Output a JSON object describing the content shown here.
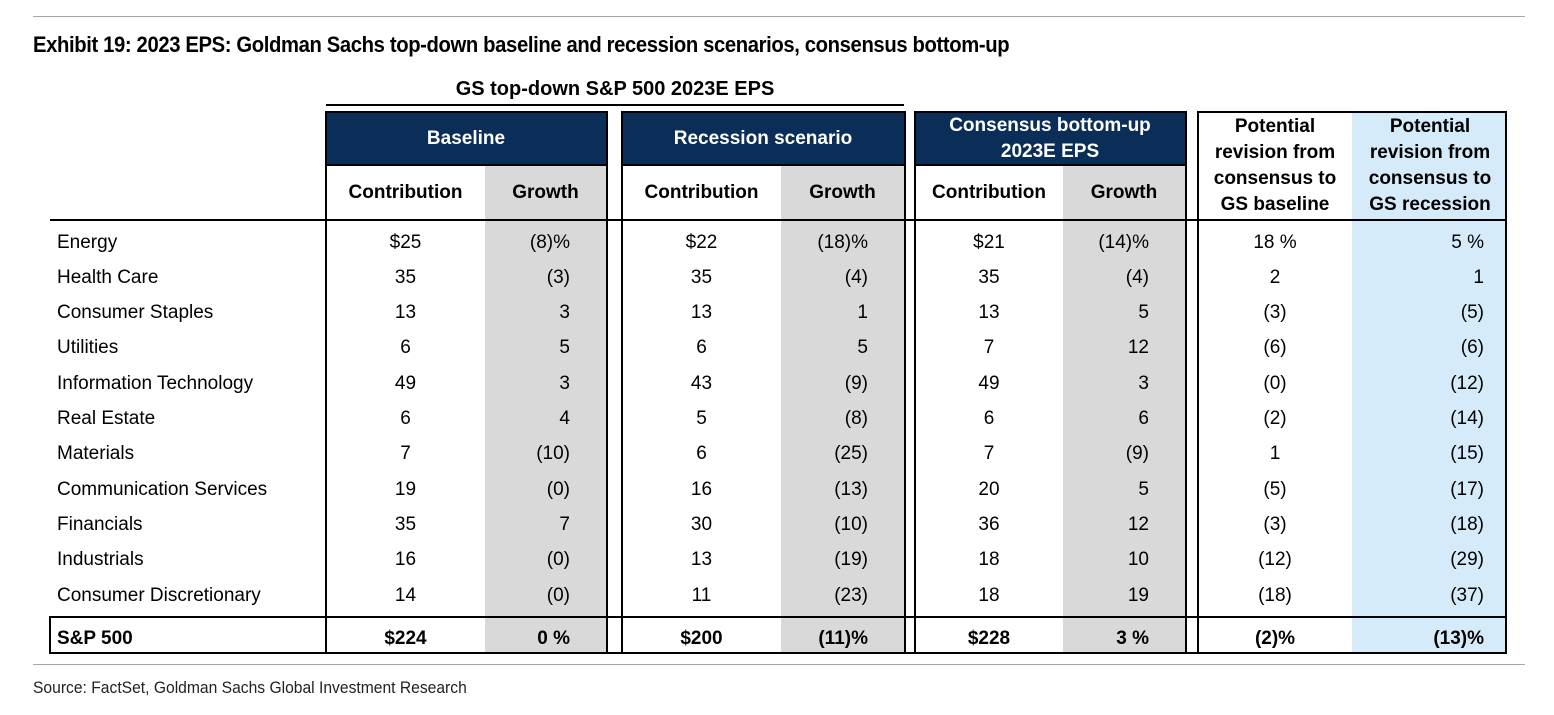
{
  "title": "Exhibit 19: 2023 EPS: Goldman Sachs top-down baseline and recession scenarios, consensus bottom-up",
  "group_header": "GS top-down S&P 500 2023E EPS",
  "column_groups": {
    "baseline": "Baseline",
    "recession": "Recession scenario",
    "consensus": "Consensus bottom-up 2023E EPS",
    "rev_baseline": "Potential revision from consensus to GS baseline",
    "rev_recession": "Potential revision from consensus to GS recession"
  },
  "sub_headers": {
    "contribution": "Contribution",
    "growth": "Growth"
  },
  "rows": [
    {
      "label": "Energy",
      "b_contrib": "$25",
      "b_growth": "(8)%",
      "r_contrib": "$22",
      "r_growth": "(18)%",
      "c_contrib": "$21",
      "c_growth": "(14)%",
      "rev_b": "18 %",
      "rev_r": "5 %"
    },
    {
      "label": "Health Care",
      "b_contrib": "35",
      "b_growth": "(3)",
      "r_contrib": "35",
      "r_growth": "(4)",
      "c_contrib": "35",
      "c_growth": "(4)",
      "rev_b": "2",
      "rev_r": "1"
    },
    {
      "label": "Consumer Staples",
      "b_contrib": "13",
      "b_growth": "3",
      "r_contrib": "13",
      "r_growth": "1",
      "c_contrib": "13",
      "c_growth": "5",
      "rev_b": "(3)",
      "rev_r": "(5)"
    },
    {
      "label": "Utilities",
      "b_contrib": "6",
      "b_growth": "5",
      "r_contrib": "6",
      "r_growth": "5",
      "c_contrib": "7",
      "c_growth": "12",
      "rev_b": "(6)",
      "rev_r": "(6)"
    },
    {
      "label": "Information Technology",
      "b_contrib": "49",
      "b_growth": "3",
      "r_contrib": "43",
      "r_growth": "(9)",
      "c_contrib": "49",
      "c_growth": "3",
      "rev_b": "(0)",
      "rev_r": "(12)"
    },
    {
      "label": "Real Estate",
      "b_contrib": "6",
      "b_growth": "4",
      "r_contrib": "5",
      "r_growth": "(8)",
      "c_contrib": "6",
      "c_growth": "6",
      "rev_b": "(2)",
      "rev_r": "(14)"
    },
    {
      "label": "Materials",
      "b_contrib": "7",
      "b_growth": "(10)",
      "r_contrib": "6",
      "r_growth": "(25)",
      "c_contrib": "7",
      "c_growth": "(9)",
      "rev_b": "1",
      "rev_r": "(15)"
    },
    {
      "label": "Communication Services",
      "b_contrib": "19",
      "b_growth": "(0)",
      "r_contrib": "16",
      "r_growth": "(13)",
      "c_contrib": "20",
      "c_growth": "5",
      "rev_b": "(5)",
      "rev_r": "(17)"
    },
    {
      "label": "Financials",
      "b_contrib": "35",
      "b_growth": "7",
      "r_contrib": "30",
      "r_growth": "(10)",
      "c_contrib": "36",
      "c_growth": "12",
      "rev_b": "(3)",
      "rev_r": "(18)"
    },
    {
      "label": "Industrials",
      "b_contrib": "16",
      "b_growth": "(0)",
      "r_contrib": "13",
      "r_growth": "(19)",
      "c_contrib": "18",
      "c_growth": "10",
      "rev_b": "(12)",
      "rev_r": "(29)"
    },
    {
      "label": "Consumer Discretionary",
      "b_contrib": "14",
      "b_growth": "(0)",
      "r_contrib": "11",
      "r_growth": "(23)",
      "c_contrib": "18",
      "c_growth": "19",
      "rev_b": "(18)",
      "rev_r": "(37)"
    }
  ],
  "total": {
    "label": "S&P 500",
    "b_contrib": "$224",
    "b_growth": "0 %",
    "r_contrib": "$200",
    "r_growth": "(11)%",
    "c_contrib": "$228",
    "c_growth": "3 %",
    "rev_b": "(2)%",
    "rev_r": "(13)%"
  },
  "source": "Source: FactSet, Goldman Sachs Global Investment Research",
  "colors": {
    "navy": "#0b2e59",
    "gray": "#d9d9d9",
    "light_blue": "#d6ebfa"
  }
}
